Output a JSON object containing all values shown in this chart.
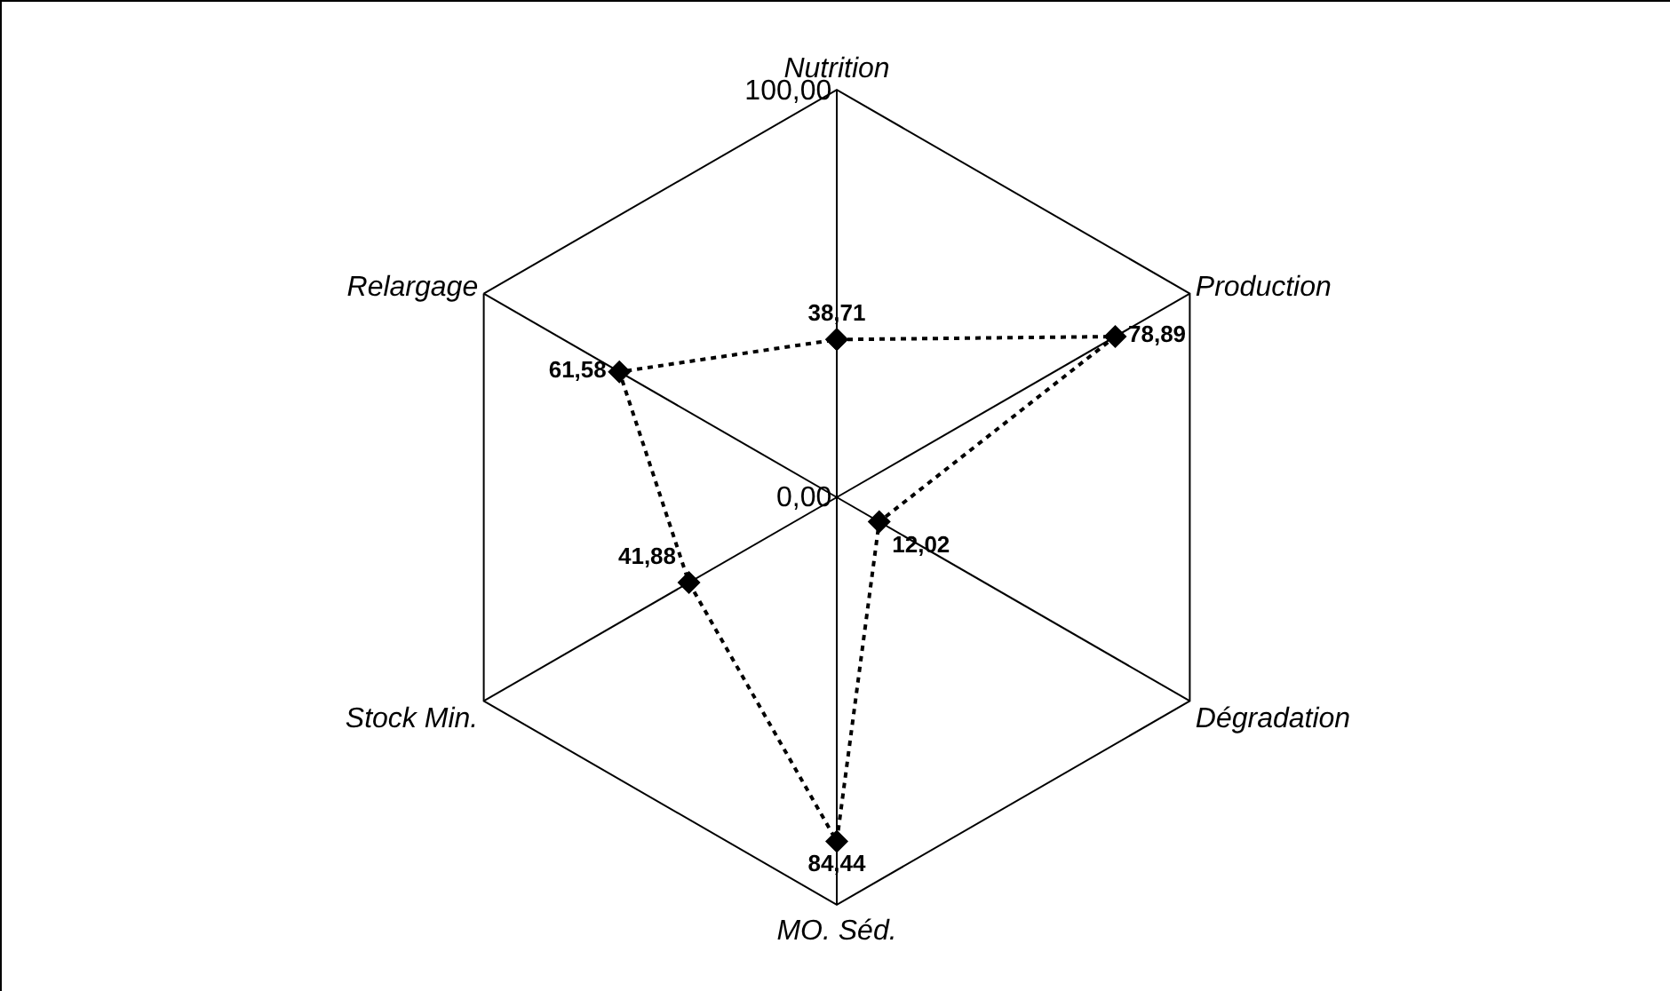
{
  "chart_data": {
    "type": "radar",
    "categories": [
      "Nutrition",
      "Production",
      "Dégradation",
      "MO. Séd.",
      "Stock Min.",
      "Relargage"
    ],
    "series": [
      {
        "color": "#000000",
        "values": [
          38.71,
          78.89,
          12.02,
          84.44,
          41.88,
          61.58
        ],
        "value_labels": [
          "38,71",
          "78,89",
          "12,02",
          "84,44",
          "41,88",
          "61,58"
        ]
      }
    ],
    "ylim": [
      0,
      100
    ],
    "yticks": [
      {
        "value": 0,
        "label": "0,00"
      },
      {
        "value": 100,
        "label": "100,00"
      }
    ],
    "grid": true,
    "marker": "diamond",
    "line_style": "dotted"
  }
}
